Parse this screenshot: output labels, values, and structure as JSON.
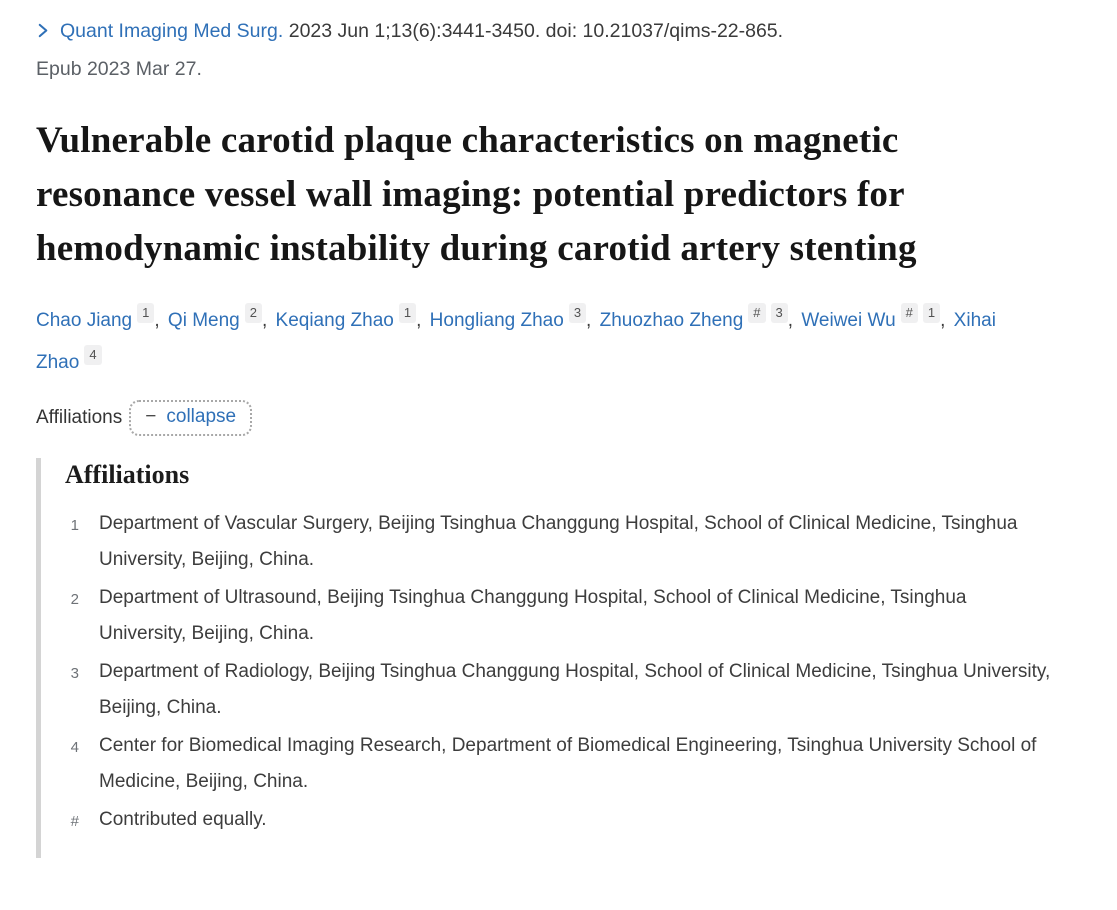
{
  "citation": {
    "journal_link_text": "Quant Imaging Med Surg.",
    "rest": "2023 Jun 1;13(6):3441-3450. doi: 10.21037/qims-22-865.",
    "epub": "Epub 2023 Mar 27."
  },
  "title": "Vulnerable carotid plaque characteristics on magnetic resonance vessel wall imaging: potential predictors for hemodynamic instability during carotid artery stenting",
  "authors": [
    {
      "name": "Chao Jiang",
      "sups": [
        "1"
      ]
    },
    {
      "name": "Qi Meng",
      "sups": [
        "2"
      ]
    },
    {
      "name": "Keqiang Zhao",
      "sups": [
        "1"
      ]
    },
    {
      "name": "Hongliang Zhao",
      "sups": [
        "3"
      ]
    },
    {
      "name": "Zhuozhao Zheng",
      "sups": [
        "#",
        "3"
      ]
    },
    {
      "name": "Weiwei Wu",
      "sups": [
        "#",
        "1"
      ]
    },
    {
      "name": "Xihai Zhao",
      "sups": [
        "4"
      ]
    }
  ],
  "affiliations_toggle": {
    "label": "Affiliations",
    "minus": "−",
    "collapse_label": "collapse"
  },
  "affiliations": {
    "heading": "Affiliations",
    "items": [
      {
        "marker": "1",
        "text": "Department of Vascular Surgery, Beijing Tsinghua Changgung Hospital, School of Clinical Medicine, Tsinghua University, Beijing, China."
      },
      {
        "marker": "2",
        "text": "Department of Ultrasound, Beijing Tsinghua Changgung Hospital, School of Clinical Medicine, Tsinghua University, Beijing, China."
      },
      {
        "marker": "3",
        "text": "Department of Radiology, Beijing Tsinghua Changgung Hospital, School of Clinical Medicine, Tsinghua University, Beijing, China."
      },
      {
        "marker": "4",
        "text": "Center for Biomedical Imaging Research, Department of Biomedical Engineering, Tsinghua University School of Medicine, Beijing, China."
      },
      {
        "marker": "#",
        "text": "Contributed equally."
      }
    ]
  },
  "colors": {
    "link_blue": "#2f70b7",
    "superscript_bg": "#f0f0f1",
    "panel_bar": "#d4d4d4"
  }
}
